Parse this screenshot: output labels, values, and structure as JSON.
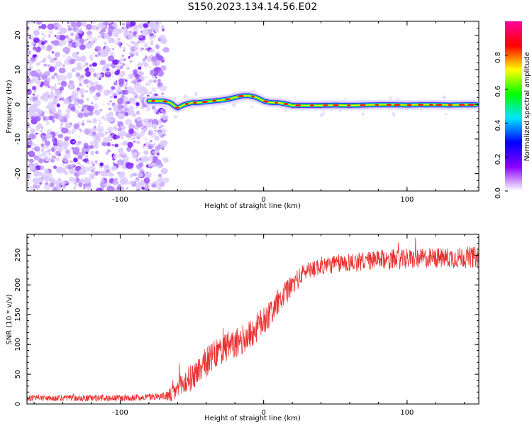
{
  "figure_title": "S150.2023.134.14.56.E02",
  "chart_data": [
    {
      "type": "heatmap",
      "xlabel": "Height of straight line (km)",
      "ylabel": "Frequency (Hz)",
      "xlim": [
        -165,
        150
      ],
      "ylim": [
        -25,
        24
      ],
      "xticks": [
        "-100",
        "0",
        "100"
      ],
      "xtick_values": [
        -100,
        0,
        100
      ],
      "yticks": [
        "-20",
        "-10",
        "0",
        "10",
        "20"
      ],
      "ytick_values": [
        -20,
        -10,
        0,
        10,
        20
      ],
      "noise_region_x": [
        -165,
        -70
      ],
      "ridge": {
        "x": [
          -80,
          -75,
          -70,
          -65,
          -62,
          -60,
          -55,
          -50,
          -45,
          -40,
          -35,
          -30,
          -25,
          -20,
          -15,
          -10,
          -5,
          0,
          5,
          10,
          15,
          20,
          30,
          40,
          50,
          60,
          70,
          80,
          90,
          100,
          110,
          120,
          130,
          140,
          148
        ],
        "y": [
          1,
          1,
          1,
          0.5,
          -0.5,
          -1,
          0,
          0.5,
          0.5,
          0.8,
          1,
          1.2,
          1.5,
          2,
          2.5,
          2.5,
          2,
          1,
          0.5,
          0.5,
          0.2,
          -0.3,
          -0.3,
          -0.3,
          -0.2,
          -0.3,
          -0.2,
          -0.1,
          -0.1,
          -0.2,
          -0.1,
          -0.1,
          -0.2,
          -0.1,
          -0.1
        ]
      },
      "colorbar": {
        "label": "Normalized spectral amplitude",
        "ticks": [
          "0.0",
          "0.2",
          "0.4",
          "0.6",
          "0.8"
        ],
        "tick_values": [
          0,
          0.2,
          0.4,
          0.6,
          0.8
        ],
        "range": [
          0,
          1
        ],
        "colors": [
          "#ffffff",
          "#8a00ff",
          "#0000ff",
          "#00e5ff",
          "#00ff00",
          "#ffff00",
          "#ff0000",
          "#ff00a0"
        ]
      }
    },
    {
      "type": "line",
      "xlabel": "Height of straight line (km)",
      "ylabel": "SNR (10 * v/v)",
      "xlim": [
        -165,
        150
      ],
      "ylim": [
        0,
        285
      ],
      "xticks": [
        "-100",
        "0",
        "100"
      ],
      "xtick_values": [
        -100,
        0,
        100
      ],
      "yticks": [
        "0",
        "50",
        "100",
        "150",
        "200",
        "250"
      ],
      "ytick_values": [
        0,
        50,
        100,
        150,
        200,
        250
      ],
      "color": "#e83030",
      "trend": {
        "x": [
          -165,
          -140,
          -100,
          -80,
          -65,
          -60,
          -55,
          -50,
          -40,
          -30,
          -20,
          -10,
          0,
          10,
          20,
          30,
          40,
          60,
          80,
          100,
          120,
          150
        ],
        "y": [
          10,
          10,
          10,
          12,
          14,
          25,
          35,
          45,
          70,
          90,
          100,
          115,
          140,
          170,
          200,
          225,
          232,
          238,
          242,
          243,
          245,
          247
        ]
      },
      "noise_amplitude": {
        "x": [
          -165,
          -70,
          -60,
          -40,
          0,
          30,
          150
        ],
        "y": [
          5,
          6,
          20,
          25,
          25,
          15,
          18
        ]
      }
    }
  ]
}
